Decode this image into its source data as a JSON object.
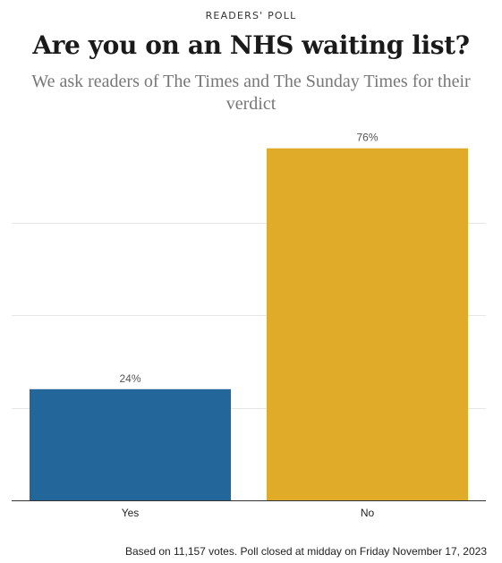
{
  "header": {
    "kicker": "READERS' POLL",
    "title": "Are you on an NHS waiting list?",
    "subtitle": "We ask readers of The Times and The Sunday Times for their verdict"
  },
  "footer": {
    "note": "Based on 11,157 votes. Poll closed at midday on Friday November 17, 2023"
  },
  "chart_data": {
    "type": "bar",
    "categories": [
      "Yes",
      "No"
    ],
    "values": [
      24,
      76
    ],
    "value_labels": [
      "24%",
      "76%"
    ],
    "colors": [
      "#236699",
      "#dfab28"
    ],
    "ylim": [
      0,
      80
    ],
    "gridlines": [
      20,
      40,
      60
    ],
    "grid": true
  }
}
